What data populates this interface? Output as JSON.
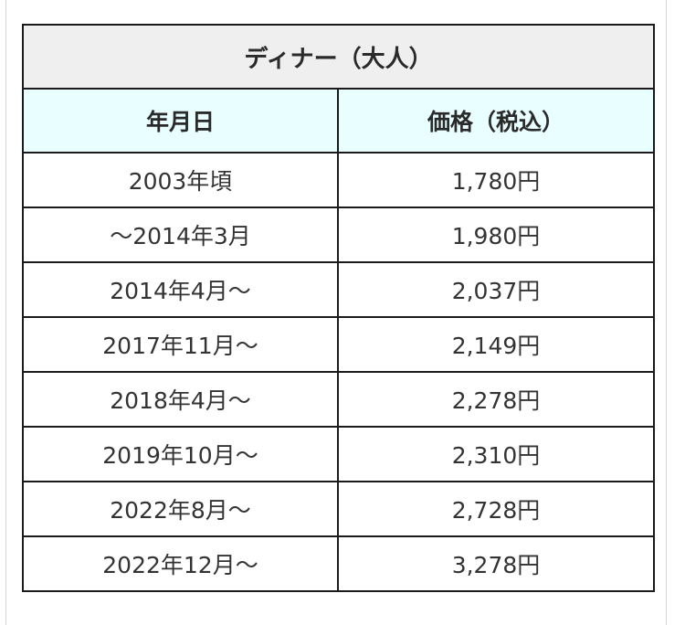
{
  "table": {
    "title": "ディナー（大人）",
    "headers": [
      "年月日",
      "価格（税込）"
    ],
    "rows": [
      {
        "date": "2003年頃",
        "price": "1,780円"
      },
      {
        "date": "～2014年3月",
        "price": "1,980円"
      },
      {
        "date": "2014年4月～",
        "price": "2,037円"
      },
      {
        "date": "2017年11月～",
        "price": "2,149円"
      },
      {
        "date": "2018年4月～",
        "price": "2,278円"
      },
      {
        "date": "2019年10月～",
        "price": "2,310円"
      },
      {
        "date": "2022年8月～",
        "price": "2,728円"
      },
      {
        "date": "2022年12月～",
        "price": "3,278円"
      }
    ]
  }
}
